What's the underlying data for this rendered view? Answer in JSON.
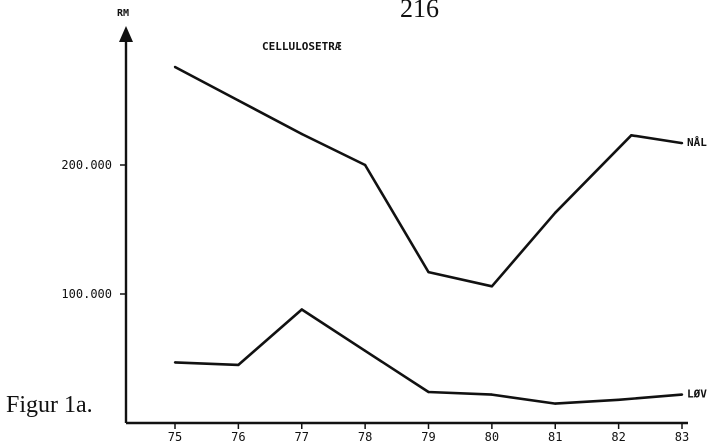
{
  "page": {
    "page_number": "216",
    "figure_caption": "Figur 1a."
  },
  "chart_data": {
    "type": "line",
    "title": "CELLULOSETRÆ",
    "ylabel": "RM",
    "xlabel": "",
    "x": [
      75,
      76,
      77,
      78,
      79,
      80,
      81,
      82,
      83
    ],
    "x_tick_labels": [
      "75",
      "76",
      "77",
      "78",
      "79",
      "80",
      "81",
      "82",
      "83"
    ],
    "y_tick_values": [
      100000,
      200000
    ],
    "y_tick_labels": [
      "100.000",
      "200.000"
    ],
    "ylim": [
      0,
      290000
    ],
    "xlim": [
      74.25,
      83.25
    ],
    "grid": false,
    "series": [
      {
        "name": "NÅL",
        "color": "#111111",
        "points": [
          [
            75,
            276000
          ],
          [
            76,
            250000
          ],
          [
            77,
            224000
          ],
          [
            78,
            200000
          ],
          [
            79,
            117000
          ],
          [
            80,
            106000
          ],
          [
            81,
            163000
          ],
          [
            82.2,
            223000
          ],
          [
            83,
            217000
          ]
        ]
      },
      {
        "name": "LØV",
        "color": "#111111",
        "points": [
          [
            75,
            47000
          ],
          [
            76,
            45000
          ],
          [
            77,
            88000
          ],
          [
            78,
            56000
          ],
          [
            79,
            24000
          ],
          [
            80,
            22000
          ],
          [
            81,
            15000
          ],
          [
            82,
            18000
          ],
          [
            83,
            22000
          ]
        ]
      }
    ]
  }
}
